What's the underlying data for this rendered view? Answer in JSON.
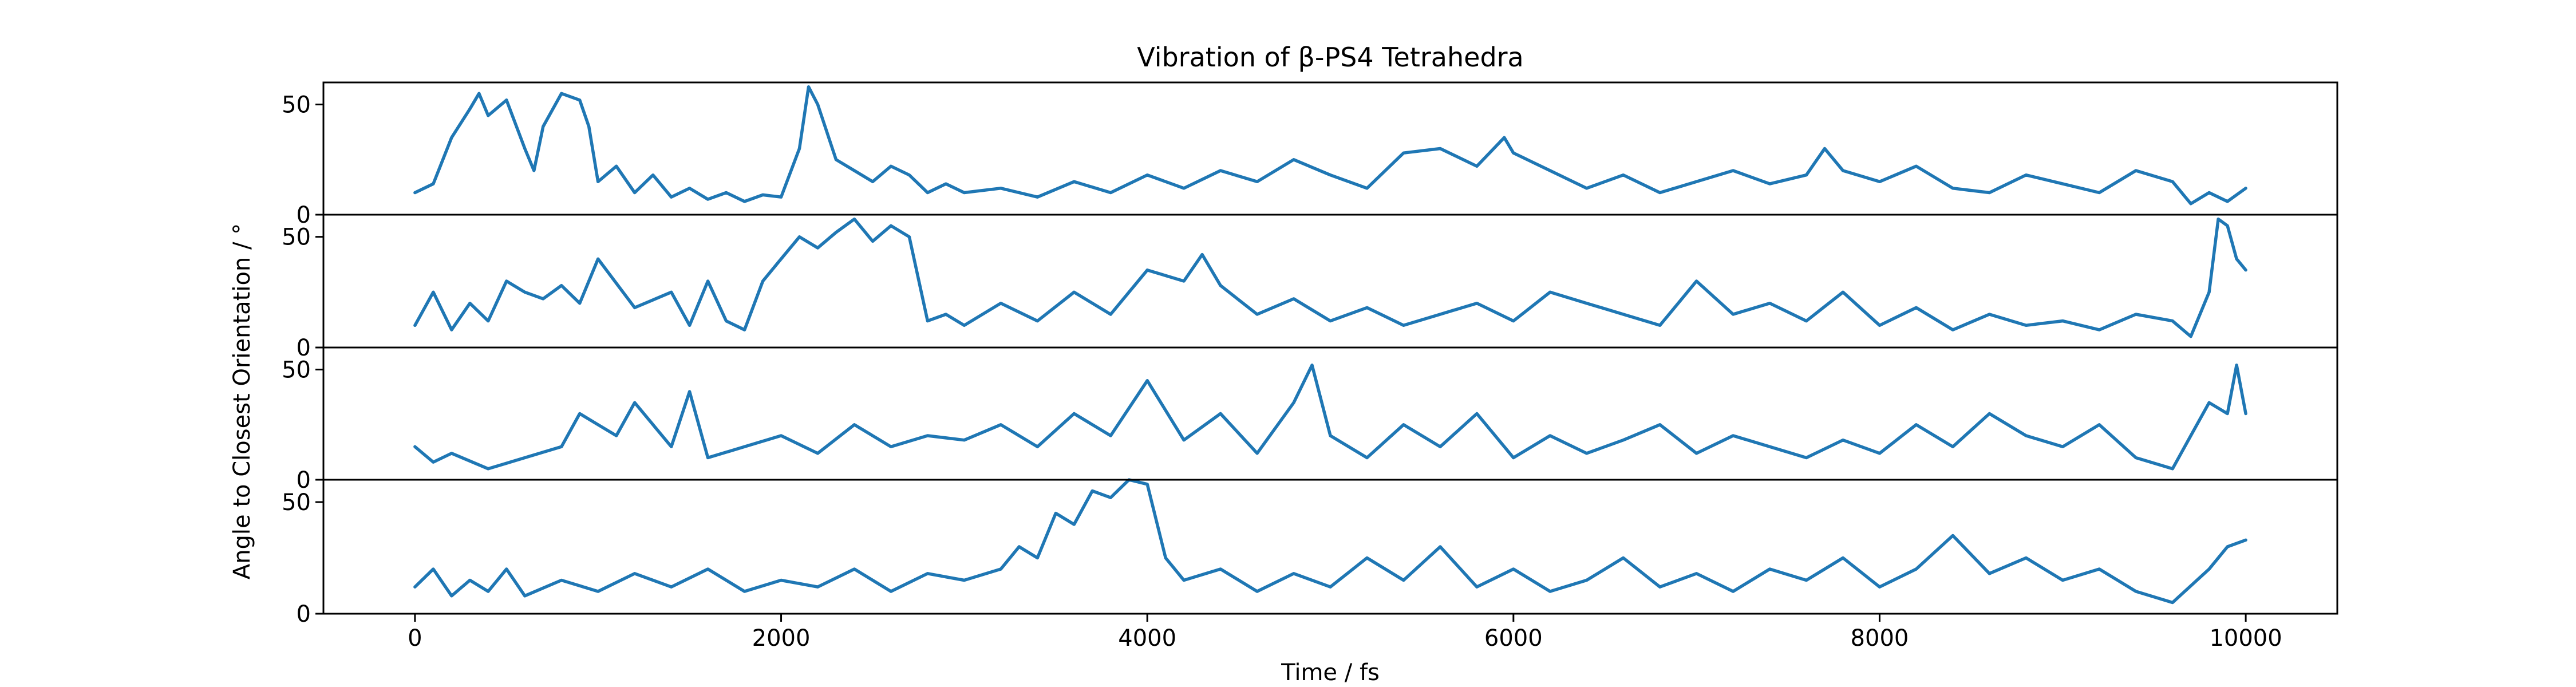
{
  "chart_data": {
    "type": "line",
    "title": "Vibration of β-PS4 Tetrahedra",
    "xlabel": "Time / fs",
    "ylabel": "Angle to Closest Orientation / °",
    "xlim": [
      -500,
      10500
    ],
    "ylim": [
      0,
      60
    ],
    "xticks": [
      0,
      2000,
      4000,
      6000,
      8000,
      10000
    ],
    "xtick_labels": [
      "0",
      "2000",
      "4000",
      "6000",
      "8000",
      "10000"
    ],
    "yticks": [
      0,
      50
    ],
    "ytick_labels": [
      "0",
      "50"
    ],
    "grid": false,
    "legend": "none",
    "line_color": "#1f77b4",
    "panels": [
      {
        "x": [
          0,
          100,
          200,
          300,
          350,
          400,
          500,
          600,
          650,
          700,
          800,
          900,
          950,
          1000,
          1100,
          1200,
          1300,
          1400,
          1500,
          1600,
          1700,
          1800,
          1900,
          2000,
          2100,
          2150,
          2200,
          2300,
          2400,
          2500,
          2600,
          2700,
          2800,
          2900,
          3000,
          3200,
          3400,
          3600,
          3800,
          4000,
          4200,
          4400,
          4600,
          4800,
          5000,
          5200,
          5400,
          5600,
          5800,
          5950,
          6000,
          6200,
          6400,
          6600,
          6800,
          7000,
          7200,
          7400,
          7600,
          7700,
          7800,
          8000,
          8200,
          8400,
          8600,
          8800,
          9000,
          9200,
          9400,
          9600,
          9700,
          9800,
          9900,
          10000
        ],
        "y": [
          10,
          14,
          35,
          48,
          55,
          45,
          52,
          30,
          20,
          40,
          55,
          52,
          40,
          15,
          22,
          10,
          18,
          8,
          12,
          7,
          10,
          6,
          9,
          8,
          30,
          58,
          50,
          25,
          20,
          15,
          22,
          18,
          10,
          14,
          10,
          12,
          8,
          15,
          10,
          18,
          12,
          20,
          15,
          25,
          18,
          12,
          28,
          30,
          22,
          35,
          28,
          20,
          12,
          18,
          10,
          15,
          20,
          14,
          18,
          30,
          20,
          15,
          22,
          12,
          10,
          18,
          14,
          10,
          20,
          15,
          5,
          10,
          6,
          12
        ]
      },
      {
        "x": [
          0,
          100,
          200,
          300,
          400,
          500,
          600,
          700,
          800,
          900,
          1000,
          1200,
          1400,
          1500,
          1600,
          1700,
          1800,
          1900,
          2000,
          2100,
          2200,
          2300,
          2400,
          2500,
          2600,
          2700,
          2800,
          2900,
          3000,
          3200,
          3400,
          3600,
          3800,
          4000,
          4200,
          4300,
          4400,
          4600,
          4800,
          5000,
          5200,
          5400,
          5600,
          5800,
          6000,
          6200,
          6400,
          6600,
          6800,
          7000,
          7200,
          7400,
          7600,
          7800,
          8000,
          8200,
          8400,
          8600,
          8800,
          9000,
          9200,
          9400,
          9600,
          9700,
          9800,
          9850,
          9900,
          9950,
          10000
        ],
        "y": [
          10,
          25,
          8,
          20,
          12,
          30,
          25,
          22,
          28,
          20,
          40,
          18,
          25,
          10,
          30,
          12,
          8,
          30,
          40,
          50,
          45,
          52,
          58,
          48,
          55,
          50,
          12,
          15,
          10,
          20,
          12,
          25,
          15,
          35,
          30,
          42,
          28,
          15,
          22,
          12,
          18,
          10,
          15,
          20,
          12,
          25,
          20,
          15,
          10,
          30,
          15,
          20,
          12,
          25,
          10,
          18,
          8,
          15,
          10,
          12,
          8,
          15,
          12,
          5,
          25,
          58,
          55,
          40,
          35
        ]
      },
      {
        "x": [
          0,
          100,
          200,
          400,
          600,
          800,
          900,
          1000,
          1100,
          1200,
          1300,
          1400,
          1500,
          1600,
          1800,
          2000,
          2200,
          2400,
          2600,
          2800,
          3000,
          3200,
          3400,
          3600,
          3800,
          4000,
          4200,
          4400,
          4600,
          4800,
          4900,
          5000,
          5200,
          5400,
          5600,
          5800,
          6000,
          6200,
          6400,
          6600,
          6800,
          7000,
          7200,
          7400,
          7600,
          7800,
          8000,
          8200,
          8400,
          8600,
          8800,
          9000,
          9200,
          9400,
          9600,
          9700,
          9800,
          9900,
          9950,
          10000
        ],
        "y": [
          15,
          8,
          12,
          5,
          10,
          15,
          30,
          25,
          20,
          35,
          25,
          15,
          40,
          10,
          15,
          20,
          12,
          25,
          15,
          20,
          18,
          25,
          15,
          30,
          20,
          45,
          18,
          30,
          12,
          35,
          52,
          20,
          10,
          25,
          15,
          30,
          10,
          20,
          12,
          18,
          25,
          12,
          20,
          15,
          10,
          18,
          12,
          25,
          15,
          30,
          20,
          15,
          25,
          10,
          5,
          20,
          35,
          30,
          52,
          30
        ]
      },
      {
        "x": [
          0,
          100,
          200,
          300,
          400,
          500,
          600,
          800,
          1000,
          1200,
          1400,
          1600,
          1800,
          2000,
          2200,
          2400,
          2600,
          2800,
          3000,
          3200,
          3300,
          3400,
          3500,
          3600,
          3700,
          3800,
          3900,
          4000,
          4100,
          4200,
          4400,
          4600,
          4800,
          5000,
          5200,
          5400,
          5600,
          5800,
          6000,
          6200,
          6400,
          6600,
          6800,
          7000,
          7200,
          7400,
          7600,
          7800,
          8000,
          8200,
          8400,
          8600,
          8800,
          9000,
          9200,
          9400,
          9600,
          9800,
          9900,
          10000
        ],
        "y": [
          12,
          20,
          8,
          15,
          10,
          20,
          8,
          15,
          10,
          18,
          12,
          20,
          10,
          15,
          12,
          20,
          10,
          18,
          15,
          20,
          30,
          25,
          45,
          40,
          55,
          52,
          60,
          58,
          25,
          15,
          20,
          10,
          18,
          12,
          25,
          15,
          30,
          12,
          20,
          10,
          15,
          25,
          12,
          18,
          10,
          20,
          15,
          25,
          12,
          20,
          35,
          18,
          25,
          15,
          20,
          10,
          5,
          20,
          30,
          33
        ]
      }
    ]
  }
}
